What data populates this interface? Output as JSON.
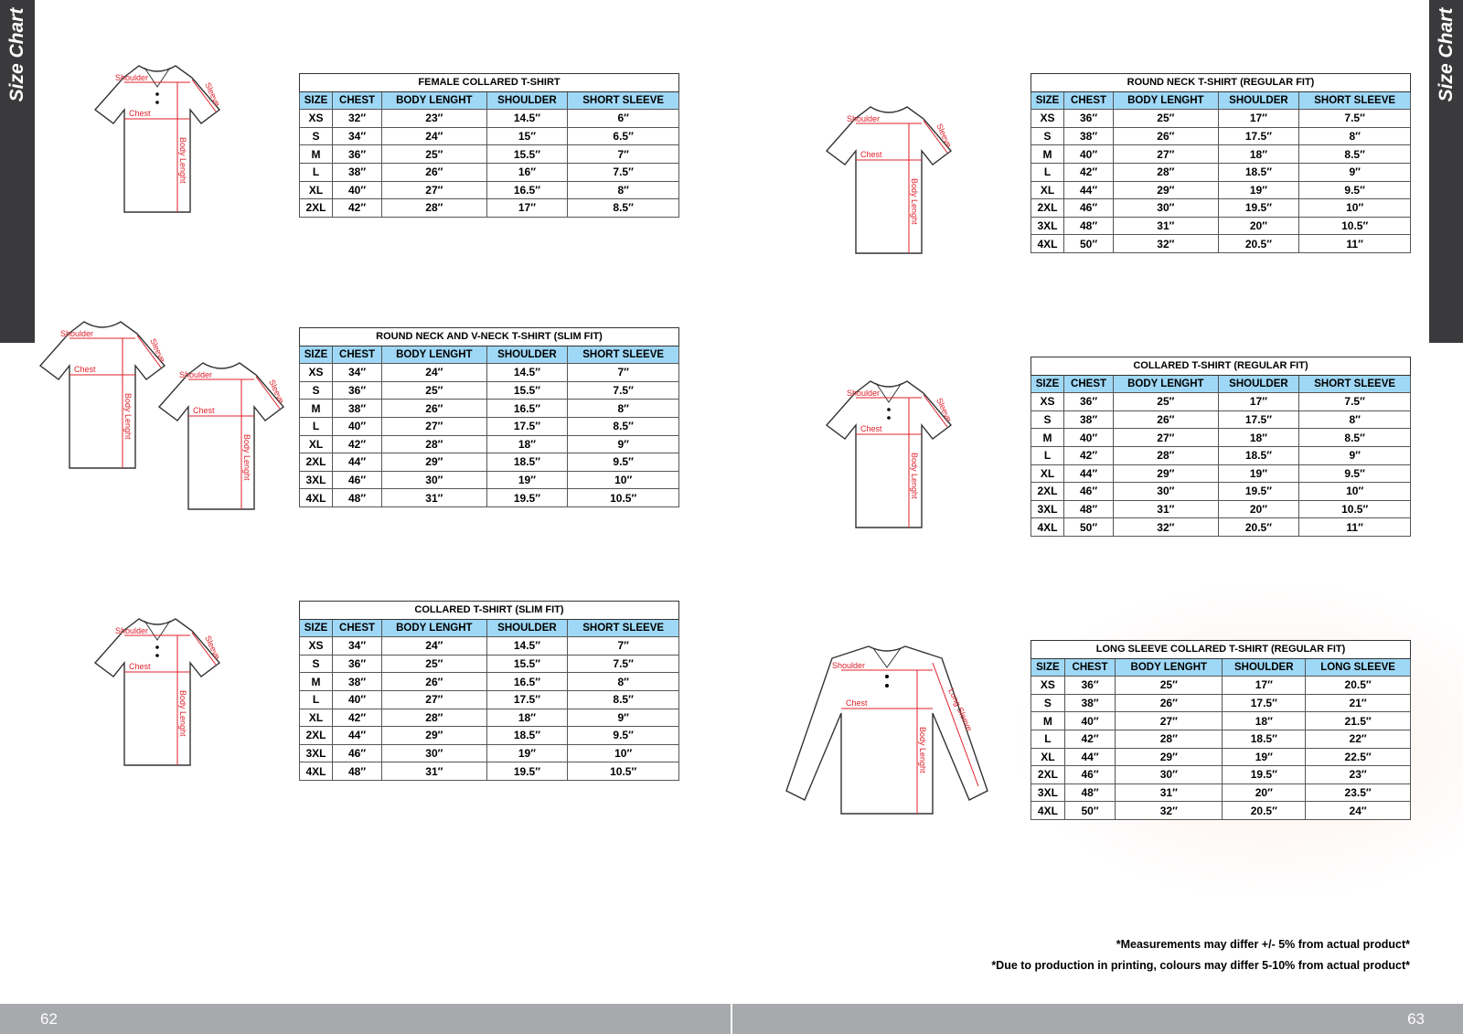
{
  "sidebar_label": "Size Chart",
  "pages": {
    "left": "62",
    "right": "63"
  },
  "labels": {
    "shoulder": "Shoulder",
    "sleeve": "Sleeve",
    "chest": "Chest",
    "body": "Body Lenght",
    "long_sleeve": "Long Sleeve"
  },
  "notes": [
    "*Measurements may differ +/- 5% from actual product*",
    "*Due to production in printing, colours may differ 5-10% from actual product*"
  ],
  "colors": {
    "header": "#9fd8f6",
    "sidebar": "#3a3a3c",
    "footer": "#a7a9ac",
    "measure_line": "#e0202a"
  },
  "tables": [
    {
      "title": "FEMALE COLLARED T-SHIRT",
      "headers": [
        "SIZE",
        "CHEST",
        "BODY LENGHT",
        "SHOULDER",
        "SHORT SLEEVE"
      ],
      "rows": [
        [
          "XS",
          "32″",
          "23″",
          "14.5″",
          "6″"
        ],
        [
          "S",
          "34″",
          "24″",
          "15″",
          "6.5″"
        ],
        [
          "M",
          "36″",
          "25″",
          "15.5″",
          "7″"
        ],
        [
          "L",
          "38″",
          "26″",
          "16″",
          "7.5″"
        ],
        [
          "XL",
          "40″",
          "27″",
          "16.5″",
          "8″"
        ],
        [
          "2XL",
          "42″",
          "28″",
          "17″",
          "8.5″"
        ]
      ]
    },
    {
      "title": "ROUND NECK AND V-NECK T-SHIRT  (SLIM FIT)",
      "headers": [
        "SIZE",
        "CHEST",
        "BODY LENGHT",
        "SHOULDER",
        "SHORT SLEEVE"
      ],
      "rows": [
        [
          "XS",
          "34″",
          "24″",
          "14.5″",
          "7″"
        ],
        [
          "S",
          "36″",
          "25″",
          "15.5″",
          "7.5″"
        ],
        [
          "M",
          "38″",
          "26″",
          "16.5″",
          "8″"
        ],
        [
          "L",
          "40″",
          "27″",
          "17.5″",
          "8.5″"
        ],
        [
          "XL",
          "42″",
          "28″",
          "18″",
          "9″"
        ],
        [
          "2XL",
          "44″",
          "29″",
          "18.5″",
          "9.5″"
        ],
        [
          "3XL",
          "46″",
          "30″",
          "19″",
          "10″"
        ],
        [
          "4XL",
          "48″",
          "31″",
          "19.5″",
          "10.5″"
        ]
      ]
    },
    {
      "title": "COLLARED T-SHIRT  (SLIM FIT)",
      "headers": [
        "SIZE",
        "CHEST",
        "BODY LENGHT",
        "SHOULDER",
        "SHORT SLEEVE"
      ],
      "rows": [
        [
          "XS",
          "34″",
          "24″",
          "14.5″",
          "7″"
        ],
        [
          "S",
          "36″",
          "25″",
          "15.5″",
          "7.5″"
        ],
        [
          "M",
          "38″",
          "26″",
          "16.5″",
          "8″"
        ],
        [
          "L",
          "40″",
          "27″",
          "17.5″",
          "8.5″"
        ],
        [
          "XL",
          "42″",
          "28″",
          "18″",
          "9″"
        ],
        [
          "2XL",
          "44″",
          "29″",
          "18.5″",
          "9.5″"
        ],
        [
          "3XL",
          "46″",
          "30″",
          "19″",
          "10″"
        ],
        [
          "4XL",
          "48″",
          "31″",
          "19.5″",
          "10.5″"
        ]
      ]
    },
    {
      "title": "ROUND NECK T-SHIRT  (REGULAR FIT)",
      "headers": [
        "SIZE",
        "CHEST",
        "BODY LENGHT",
        "SHOULDER",
        "SHORT SLEEVE"
      ],
      "rows": [
        [
          "XS",
          "36″",
          "25″",
          "17″",
          "7.5″"
        ],
        [
          "S",
          "38″",
          "26″",
          "17.5″",
          "8″"
        ],
        [
          "M",
          "40″",
          "27″",
          "18″",
          "8.5″"
        ],
        [
          "L",
          "42″",
          "28″",
          "18.5″",
          "9″"
        ],
        [
          "XL",
          "44″",
          "29″",
          "19″",
          "9.5″"
        ],
        [
          "2XL",
          "46″",
          "30″",
          "19.5″",
          "10″"
        ],
        [
          "3XL",
          "48″",
          "31″",
          "20″",
          "10.5″"
        ],
        [
          "4XL",
          "50″",
          "32″",
          "20.5″",
          "11″"
        ]
      ]
    },
    {
      "title": "COLLARED T-SHIRT  (REGULAR FIT)",
      "headers": [
        "SIZE",
        "CHEST",
        "BODY LENGHT",
        "SHOULDER",
        "SHORT SLEEVE"
      ],
      "rows": [
        [
          "XS",
          "36″",
          "25″",
          "17″",
          "7.5″"
        ],
        [
          "S",
          "38″",
          "26″",
          "17.5″",
          "8″"
        ],
        [
          "M",
          "40″",
          "27″",
          "18″",
          "8.5″"
        ],
        [
          "L",
          "42″",
          "28″",
          "18.5″",
          "9″"
        ],
        [
          "XL",
          "44″",
          "29″",
          "19″",
          "9.5″"
        ],
        [
          "2XL",
          "46″",
          "30″",
          "19.5″",
          "10″"
        ],
        [
          "3XL",
          "48″",
          "31″",
          "20″",
          "10.5″"
        ],
        [
          "4XL",
          "50″",
          "32″",
          "20.5″",
          "11″"
        ]
      ]
    },
    {
      "title": "LONG SLEEVE COLLARED T-SHIRT  (REGULAR FIT)",
      "headers": [
        "SIZE",
        "CHEST",
        "BODY LENGHT",
        "SHOULDER",
        "LONG SLEEVE"
      ],
      "rows": [
        [
          "XS",
          "36″",
          "25″",
          "17″",
          "20.5″"
        ],
        [
          "S",
          "38″",
          "26″",
          "17.5″",
          "21″"
        ],
        [
          "M",
          "40″",
          "27″",
          "18″",
          "21.5″"
        ],
        [
          "L",
          "42″",
          "28″",
          "18.5″",
          "22″"
        ],
        [
          "XL",
          "44″",
          "29″",
          "19″",
          "22.5″"
        ],
        [
          "2XL",
          "46″",
          "30″",
          "19.5″",
          "23″"
        ],
        [
          "3XL",
          "48″",
          "31″",
          "20″",
          "23.5″"
        ],
        [
          "4XL",
          "50″",
          "32″",
          "20.5″",
          "24″"
        ]
      ]
    }
  ]
}
